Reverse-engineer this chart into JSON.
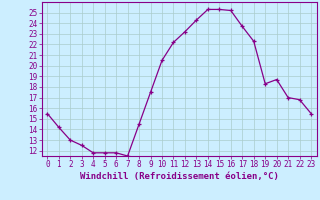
{
  "x": [
    0,
    1,
    2,
    3,
    4,
    5,
    6,
    7,
    8,
    9,
    10,
    11,
    12,
    13,
    14,
    15,
    16,
    17,
    18,
    19,
    20,
    21,
    22,
    23
  ],
  "y": [
    15.5,
    14.2,
    13.0,
    12.5,
    11.8,
    11.8,
    11.8,
    11.5,
    14.5,
    17.5,
    20.5,
    22.2,
    23.2,
    24.3,
    25.3,
    25.3,
    25.2,
    23.7,
    22.3,
    18.3,
    18.7,
    17.0,
    16.8,
    15.5
  ],
  "line_color": "#880088",
  "bg_color": "#cceeff",
  "grid_color": "#aacccc",
  "ylabel_ticks": [
    12,
    13,
    14,
    15,
    16,
    17,
    18,
    19,
    20,
    21,
    22,
    23,
    24,
    25
  ],
  "xlabel_ticks": [
    0,
    1,
    2,
    3,
    4,
    5,
    6,
    7,
    8,
    9,
    10,
    11,
    12,
    13,
    14,
    15,
    16,
    17,
    18,
    19,
    20,
    21,
    22,
    23
  ],
  "xlabel": "Windchill (Refroidissement éolien,°C)",
  "ylim": [
    11.5,
    26.0
  ],
  "xlim": [
    -0.5,
    23.5
  ],
  "axis_fontsize": 5.5,
  "label_fontsize": 6.5
}
